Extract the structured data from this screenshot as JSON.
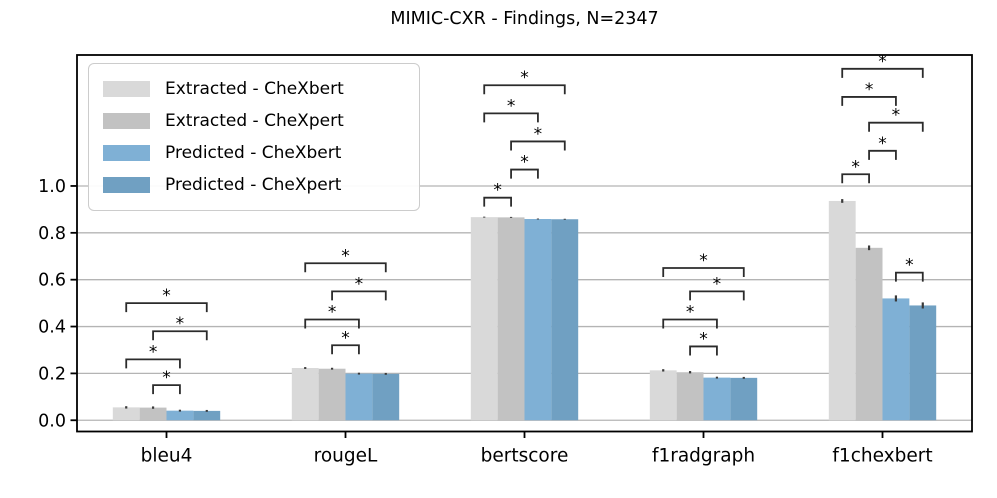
{
  "chart_data": {
    "type": "bar",
    "title": "MIMIC-CXR - Findings, N=2347",
    "categories": [
      "bleu4",
      "rougeL",
      "bertscore",
      "f1radgraph",
      "f1chexbert"
    ],
    "series": [
      {
        "name": "Extracted - CheXbert",
        "color": "#D9D9D9",
        "values": [
          0.055,
          0.223,
          0.867,
          0.213,
          0.936
        ],
        "errors": [
          0.005,
          0.004,
          0.002,
          0.005,
          0.008
        ]
      },
      {
        "name": "Extracted - CheXpert",
        "color": "#C2C2C2",
        "values": [
          0.054,
          0.22,
          0.866,
          0.205,
          0.736
        ],
        "errors": [
          0.005,
          0.004,
          0.002,
          0.005,
          0.01
        ]
      },
      {
        "name": "Predicted - CheXbert",
        "color": "#7FB0D5",
        "values": [
          0.041,
          0.199,
          0.859,
          0.182,
          0.52
        ],
        "errors": [
          0.004,
          0.004,
          0.002,
          0.004,
          0.013
        ]
      },
      {
        "name": "Predicted - CheXpert",
        "color": "#70A0C2",
        "values": [
          0.04,
          0.198,
          0.858,
          0.181,
          0.49
        ],
        "errors": [
          0.004,
          0.004,
          0.002,
          0.004,
          0.013
        ]
      }
    ],
    "bar_width": 0.15,
    "ylim": [
      -0.048,
      1.559
    ],
    "yticks": [
      0.0,
      0.2,
      0.4,
      0.6,
      0.8,
      1.0
    ],
    "ytick_labels": [
      "0.0",
      "0.2",
      "0.4",
      "0.6",
      "0.8",
      "1.0"
    ],
    "grid": true,
    "legend_position": "upper left",
    "significance_brackets": [
      {
        "category": 0,
        "pair": [
          0,
          3
        ],
        "y": 0.5,
        "label": "*"
      },
      {
        "category": 0,
        "pair": [
          1,
          3
        ],
        "y": 0.38,
        "label": "*"
      },
      {
        "category": 0,
        "pair": [
          0,
          2
        ],
        "y": 0.26,
        "label": "*"
      },
      {
        "category": 0,
        "pair": [
          1,
          2
        ],
        "y": 0.15,
        "label": "*"
      },
      {
        "category": 1,
        "pair": [
          0,
          3
        ],
        "y": 0.67,
        "label": "*"
      },
      {
        "category": 1,
        "pair": [
          1,
          3
        ],
        "y": 0.55,
        "label": "*"
      },
      {
        "category": 1,
        "pair": [
          0,
          2
        ],
        "y": 0.43,
        "label": "*"
      },
      {
        "category": 1,
        "pair": [
          1,
          2
        ],
        "y": 0.32,
        "label": "*"
      },
      {
        "category": 2,
        "pair": [
          0,
          3
        ],
        "y": 1.43,
        "label": "*"
      },
      {
        "category": 2,
        "pair": [
          0,
          2
        ],
        "y": 1.31,
        "label": "*"
      },
      {
        "category": 2,
        "pair": [
          1,
          3
        ],
        "y": 1.19,
        "label": "*"
      },
      {
        "category": 2,
        "pair": [
          1,
          2
        ],
        "y": 1.07,
        "label": "*"
      },
      {
        "category": 2,
        "pair": [
          0,
          1
        ],
        "y": 0.95,
        "label": "*"
      },
      {
        "category": 3,
        "pair": [
          0,
          3
        ],
        "y": 0.65,
        "label": "*"
      },
      {
        "category": 3,
        "pair": [
          1,
          3
        ],
        "y": 0.55,
        "label": "*"
      },
      {
        "category": 3,
        "pair": [
          0,
          2
        ],
        "y": 0.43,
        "label": "*"
      },
      {
        "category": 3,
        "pair": [
          1,
          2
        ],
        "y": 0.315,
        "label": "*"
      },
      {
        "category": 4,
        "pair": [
          0,
          3
        ],
        "y": 1.5,
        "label": "*"
      },
      {
        "category": 4,
        "pair": [
          0,
          2
        ],
        "y": 1.38,
        "label": "*"
      },
      {
        "category": 4,
        "pair": [
          1,
          3
        ],
        "y": 1.27,
        "label": "*"
      },
      {
        "category": 4,
        "pair": [
          1,
          2
        ],
        "y": 1.15,
        "label": "*"
      },
      {
        "category": 4,
        "pair": [
          0,
          1
        ],
        "y": 1.05,
        "label": "*"
      },
      {
        "category": 4,
        "pair": [
          2,
          3
        ],
        "y": 0.63,
        "label": "*"
      }
    ],
    "colors": {
      "grid": "#b4b4b4",
      "spine": "#000000",
      "error": "#3a3a3a",
      "bracket": "#2b2b2b",
      "text": "#000000"
    }
  }
}
